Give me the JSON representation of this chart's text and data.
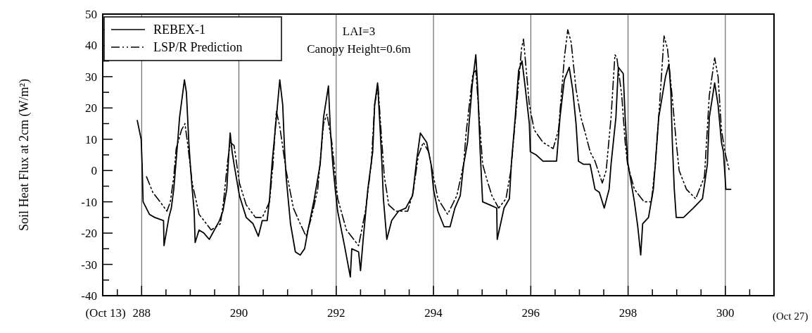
{
  "chart_data": {
    "type": "line",
    "ylabel": "Soil Heat Flux at 2cm (W/m²)",
    "xlim": [
      287.2,
      301
    ],
    "ylim": [
      -40,
      50
    ],
    "xticks": [
      {
        "value": 287.5,
        "label": null
      },
      288,
      {
        "value": 288.5,
        "label": null
      },
      {
        "value": 289,
        "label": null
      },
      {
        "value": 289.5,
        "label": null
      },
      290,
      {
        "value": 290.5,
        "label": null
      },
      {
        "value": 291,
        "label": null
      },
      {
        "value": 291.5,
        "label": null
      },
      292,
      {
        "value": 292.5,
        "label": null
      },
      {
        "value": 293,
        "label": null
      },
      {
        "value": 293.5,
        "label": null
      },
      294,
      {
        "value": 294.5,
        "label": null
      },
      {
        "value": 295,
        "label": null
      },
      {
        "value": 295.5,
        "label": null
      },
      296,
      {
        "value": 296.5,
        "label": null
      },
      {
        "value": 297,
        "label": null
      },
      {
        "value": 297.5,
        "label": null
      },
      298,
      {
        "value": 298.5,
        "label": null
      },
      {
        "value": 299,
        "label": null
      },
      {
        "value": 299.5,
        "label": null
      },
      300,
      {
        "value": 300.5,
        "label": null
      }
    ],
    "yticks": [
      -40,
      {
        "value": -35,
        "label": null
      },
      -30,
      {
        "value": -25,
        "label": null
      },
      -20,
      {
        "value": -15,
        "label": null
      },
      -10,
      {
        "value": -5,
        "label": null
      },
      0,
      {
        "value": 5,
        "label": null
      },
      10,
      {
        "value": 15,
        "label": null
      },
      20,
      {
        "value": 25,
        "label": null
      },
      30,
      {
        "value": 35,
        "label": null
      },
      40,
      {
        "value": 45,
        "label": null
      },
      50
    ],
    "grid": "x",
    "legend": "top left",
    "marker": "none",
    "annotations": [
      "LAI=3",
      "Canopy Height=0.6m",
      "(Oct 13)",
      "(Oct 27)"
    ],
    "series": [
      {
        "name": "REBEX-1",
        "color": "#000000",
        "line_style": "solid",
        "x": [
          287.91,
          287.99,
          288.01,
          288.03,
          288.16,
          288.27,
          288.45,
          288.46,
          288.56,
          288.61,
          288.66,
          288.74,
          288.78,
          288.88,
          288.92,
          288.97,
          289.0,
          289.04,
          289.08,
          289.1,
          289.18,
          289.28,
          289.39,
          289.6,
          289.67,
          289.75,
          289.79,
          289.82,
          289.86,
          289.9,
          290.01,
          290.15,
          290.29,
          290.4,
          290.48,
          290.58,
          290.63,
          290.68,
          290.77,
          290.84,
          290.9,
          290.94,
          290.97,
          291.06,
          291.16,
          291.26,
          291.35,
          291.42,
          291.55,
          291.67,
          291.74,
          291.84,
          291.88,
          291.93,
          291.98,
          292.03,
          292.17,
          292.29,
          292.32,
          292.46,
          292.5,
          292.56,
          292.65,
          292.75,
          292.79,
          292.85,
          292.89,
          292.94,
          292.97,
          293.04,
          293.14,
          293.28,
          293.43,
          293.57,
          293.66,
          293.73,
          293.86,
          293.95,
          294.0,
          294.09,
          294.22,
          294.34,
          294.44,
          294.55,
          294.62,
          294.7,
          294.8,
          294.87,
          294.91,
          294.96,
          295.01,
          295.16,
          295.3,
          295.31,
          295.45,
          295.56,
          295.6,
          295.68,
          295.75,
          295.82,
          295.89,
          295.97,
          295.99,
          296.11,
          296.25,
          296.46,
          296.53,
          296.6,
          296.69,
          296.79,
          296.86,
          296.93,
          296.98,
          297.08,
          297.22,
          297.32,
          297.41,
          297.51,
          297.61,
          297.65,
          297.75,
          297.8,
          297.9,
          297.94,
          297.99,
          298.13,
          298.2,
          298.26,
          298.3,
          298.42,
          298.52,
          298.56,
          298.63,
          298.77,
          298.84,
          298.88,
          298.91,
          298.95,
          298.99,
          299.14,
          299.34,
          299.53,
          299.63,
          299.67,
          299.78,
          299.85,
          299.92,
          299.96,
          300.01,
          300.11
        ],
        "values": [
          16,
          10,
          2,
          -10,
          -14,
          -15,
          -16,
          -24,
          -15,
          -12,
          -6,
          9,
          17,
          29,
          25,
          9,
          2,
          -6,
          -13,
          -23,
          -19,
          -20,
          -22,
          -16,
          -13,
          -6,
          5,
          12,
          6,
          2,
          -8,
          -15,
          -17,
          -21,
          -16,
          -16,
          -9,
          2,
          17,
          29,
          21,
          6,
          -2,
          -17,
          -26,
          -27,
          -25,
          -19,
          -9,
          2,
          17,
          27,
          13,
          2,
          -6,
          -13,
          -24,
          -34,
          -25,
          -26,
          -32,
          -21,
          -6,
          6,
          21,
          28,
          17,
          2,
          -9,
          -22,
          -16,
          -13,
          -12,
          -8,
          4,
          12,
          9,
          2,
          -6,
          -13,
          -18,
          -18,
          -12,
          -8,
          2,
          9,
          28,
          37,
          26,
          6,
          -10,
          -11,
          -12,
          -22,
          -12,
          -9,
          2,
          17,
          32,
          35,
          26,
          15,
          6,
          5,
          3,
          3,
          3,
          17,
          29,
          33,
          26,
          15,
          3,
          2,
          2,
          -6,
          -7,
          -12,
          -6,
          2,
          17,
          33,
          31,
          17,
          3,
          -10,
          -18,
          -27,
          -17,
          -15,
          -6,
          2,
          17,
          30,
          34,
          25,
          9,
          -6,
          -15,
          -15,
          -12,
          -9,
          2,
          17,
          28,
          21,
          9,
          6,
          -6,
          -6
        ]
      },
      {
        "name": "LSP/R Prediction",
        "color": "#000000",
        "line_style": "dashed",
        "x": [
          288.1,
          288.23,
          288.38,
          288.52,
          288.59,
          288.66,
          288.71,
          288.82,
          288.89,
          288.95,
          289.04,
          289.18,
          289.33,
          289.43,
          289.62,
          289.69,
          289.76,
          289.82,
          289.9,
          290.01,
          290.15,
          290.34,
          290.48,
          290.63,
          290.7,
          290.77,
          290.84,
          290.97,
          291.12,
          291.26,
          291.38,
          291.49,
          291.62,
          291.74,
          291.81,
          291.91,
          292.03,
          292.21,
          292.46,
          292.6,
          292.72,
          292.79,
          292.86,
          292.92,
          292.99,
          293.08,
          293.22,
          293.47,
          293.58,
          293.69,
          293.79,
          293.9,
          294.0,
          294.09,
          294.29,
          294.48,
          294.62,
          294.67,
          294.81,
          294.87,
          294.94,
          295.01,
          295.1,
          295.2,
          295.34,
          295.49,
          295.59,
          295.71,
          295.81,
          295.85,
          295.89,
          295.97,
          296.07,
          296.25,
          296.46,
          296.57,
          296.69,
          296.76,
          296.83,
          296.93,
          297.03,
          297.12,
          297.22,
          297.32,
          297.47,
          297.55,
          297.65,
          297.73,
          297.77,
          297.87,
          297.94,
          297.99,
          298.13,
          298.33,
          298.48,
          298.56,
          298.66,
          298.74,
          298.81,
          298.91,
          298.99,
          299.05,
          299.2,
          299.39,
          299.57,
          299.67,
          299.78,
          299.85,
          299.92,
          299.99,
          300.08
        ],
        "values": [
          -2,
          -7,
          -10,
          -13,
          -10,
          -2,
          7,
          13,
          15,
          8,
          -4,
          -14,
          -17,
          -19,
          -17,
          -9,
          2,
          9,
          8,
          -4,
          -11,
          -15,
          -15,
          -10,
          2,
          19,
          14,
          0,
          -12,
          -17,
          -21,
          -15,
          -6,
          15,
          18,
          9,
          -9,
          -19,
          -24,
          -13,
          2,
          21,
          27,
          13,
          -2,
          -11,
          -13,
          -13,
          -7,
          5,
          9,
          6,
          -2,
          -9,
          -14,
          -8,
          2,
          12,
          31,
          32,
          17,
          2,
          -3,
          -8,
          -12,
          -9,
          0,
          21,
          39,
          42,
          35,
          21,
          13,
          9,
          7,
          13,
          36,
          45,
          41,
          26,
          17,
          12,
          6,
          3,
          -4,
          0,
          17,
          37,
          36,
          24,
          9,
          2,
          -6,
          -10,
          -10,
          2,
          24,
          43,
          39,
          23,
          9,
          0,
          -6,
          -9,
          -2,
          24,
          36,
          30,
          13,
          6,
          0
        ]
      }
    ]
  }
}
